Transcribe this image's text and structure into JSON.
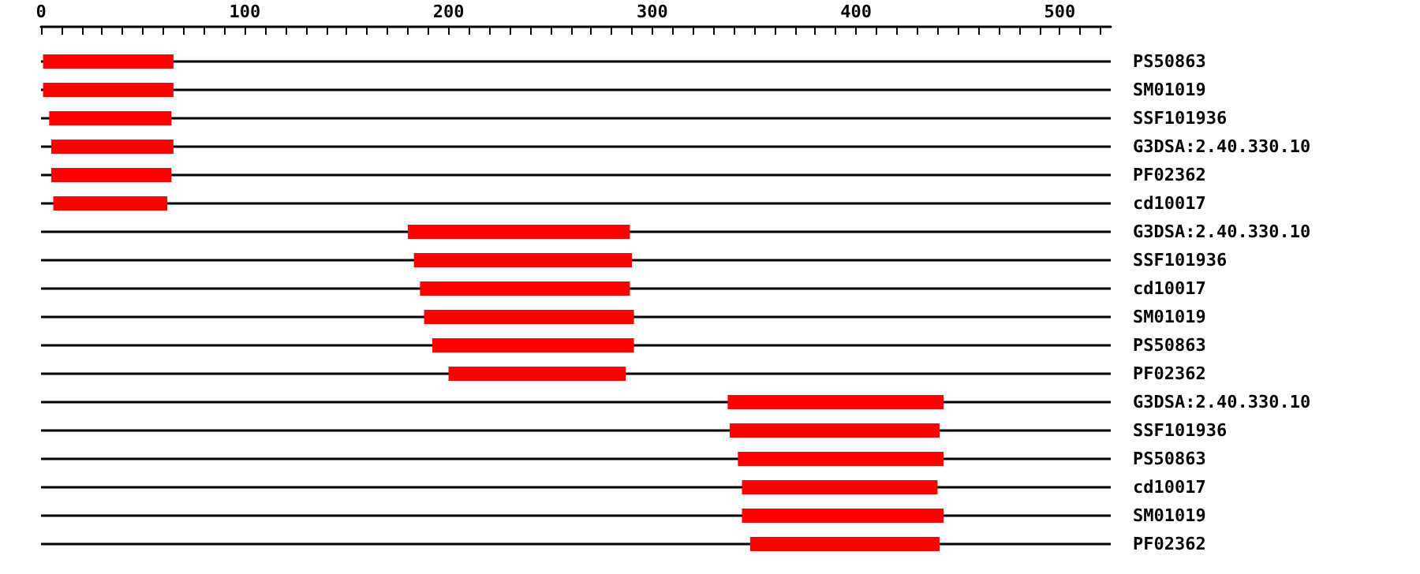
{
  "chart_data": {
    "type": "bar",
    "orientation": "horizontal",
    "categories": [
      "PS50863",
      "SM01019",
      "SSF101936",
      "G3DSA:2.40.330.10",
      "PF02362",
      "cd10017",
      "G3DSA:2.40.330.10",
      "SSF101936",
      "cd10017",
      "SM01019",
      "PS50863",
      "PF02362",
      "G3DSA:2.40.330.10",
      "SSF101936",
      "PS50863",
      "cd10017",
      "SM01019",
      "PF02362"
    ],
    "base": [
      1,
      1,
      4,
      5,
      5,
      6,
      180,
      183,
      186,
      188,
      192,
      200,
      337,
      338,
      342,
      344,
      344,
      348
    ],
    "values": [
      64,
      64,
      60,
      60,
      59,
      56,
      109,
      107,
      103,
      103,
      99,
      87,
      106,
      103,
      101,
      96,
      99,
      93
    ],
    "color": "#ff0000",
    "xlim": [
      0,
      525
    ],
    "xticks": [
      0,
      {
        "value": 10,
        "label": null
      },
      {
        "value": 20,
        "label": null
      },
      {
        "value": 30,
        "label": null
      },
      {
        "value": 40,
        "label": null
      },
      {
        "value": 50,
        "label": null
      },
      {
        "value": 60,
        "label": null
      },
      {
        "value": 70,
        "label": null
      },
      {
        "value": 80,
        "label": null
      },
      {
        "value": 90,
        "label": null
      },
      100,
      {
        "value": 110,
        "label": null
      },
      {
        "value": 120,
        "label": null
      },
      {
        "value": 130,
        "label": null
      },
      {
        "value": 140,
        "label": null
      },
      {
        "value": 150,
        "label": null
      },
      {
        "value": 160,
        "label": null
      },
      {
        "value": 170,
        "label": null
      },
      {
        "value": 180,
        "label": null
      },
      {
        "value": 190,
        "label": null
      },
      200,
      {
        "value": 210,
        "label": null
      },
      {
        "value": 220,
        "label": null
      },
      {
        "value": 230,
        "label": null
      },
      {
        "value": 240,
        "label": null
      },
      {
        "value": 250,
        "label": null
      },
      {
        "value": 260,
        "label": null
      },
      {
        "value": 270,
        "label": null
      },
      {
        "value": 280,
        "label": null
      },
      {
        "value": 290,
        "label": null
      },
      300,
      {
        "value": 310,
        "label": null
      },
      {
        "value": 320,
        "label": null
      },
      {
        "value": 330,
        "label": null
      },
      {
        "value": 340,
        "label": null
      },
      {
        "value": 350,
        "label": null
      },
      {
        "value": 360,
        "label": null
      },
      {
        "value": 370,
        "label": null
      },
      {
        "value": 380,
        "label": null
      },
      {
        "value": 390,
        "label": null
      },
      400,
      {
        "value": 410,
        "label": null
      },
      {
        "value": 420,
        "label": null
      },
      {
        "value": 430,
        "label": null
      },
      {
        "value": 440,
        "label": null
      },
      {
        "value": 450,
        "label": null
      },
      {
        "value": 460,
        "label": null
      },
      {
        "value": 470,
        "label": null
      },
      {
        "value": 480,
        "label": null
      },
      {
        "value": 490,
        "label": null
      },
      500,
      {
        "value": 510,
        "label": null
      },
      {
        "value": 520,
        "label": null
      }
    ],
    "grid": "y"
  }
}
